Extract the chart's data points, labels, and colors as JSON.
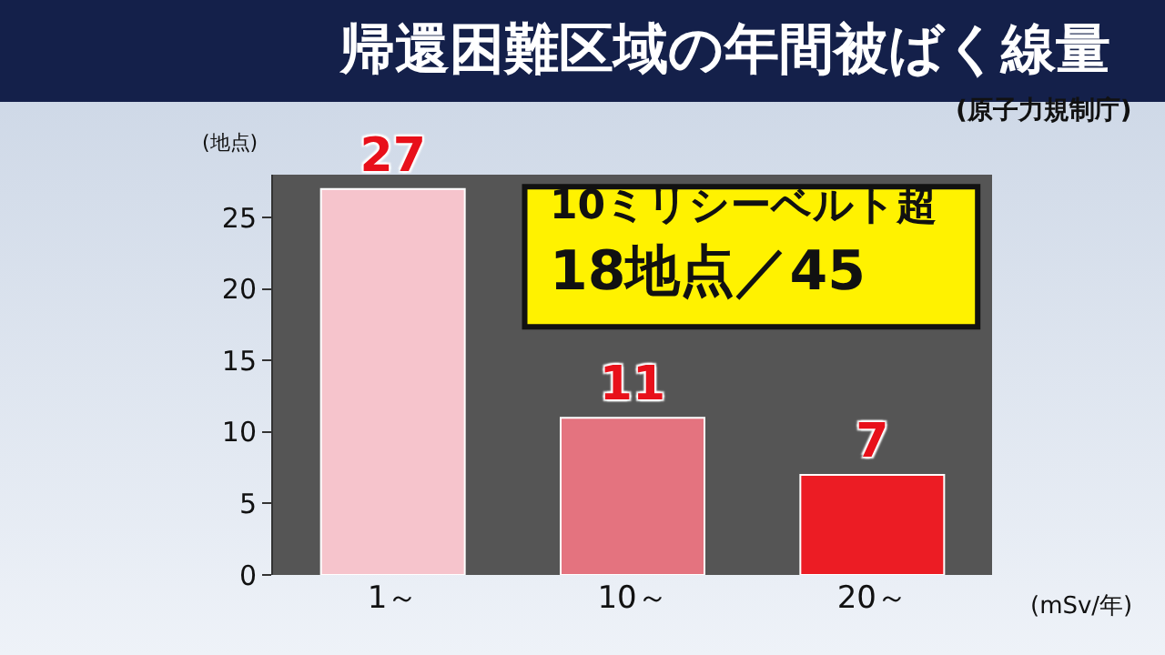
{
  "chart_data": {
    "type": "bar",
    "title": "帰還困難区域の年間被ばく線量",
    "annotations": [
      "(原子力規制庁)",
      "10ミリシーベルト超",
      "18地点／45"
    ],
    "ylabel": "(地点)",
    "xlabel": "(mSv/年)",
    "categories": [
      "1～",
      "10～",
      "20～"
    ],
    "values": [
      27,
      11,
      7
    ],
    "colors": [
      "#f6c4cc",
      "#e4737f",
      "#ec1c24"
    ],
    "ylim": [
      0,
      28
    ],
    "yticks": [
      0,
      5,
      10,
      15,
      20,
      25
    ],
    "data_labels": true,
    "grid": false
  }
}
